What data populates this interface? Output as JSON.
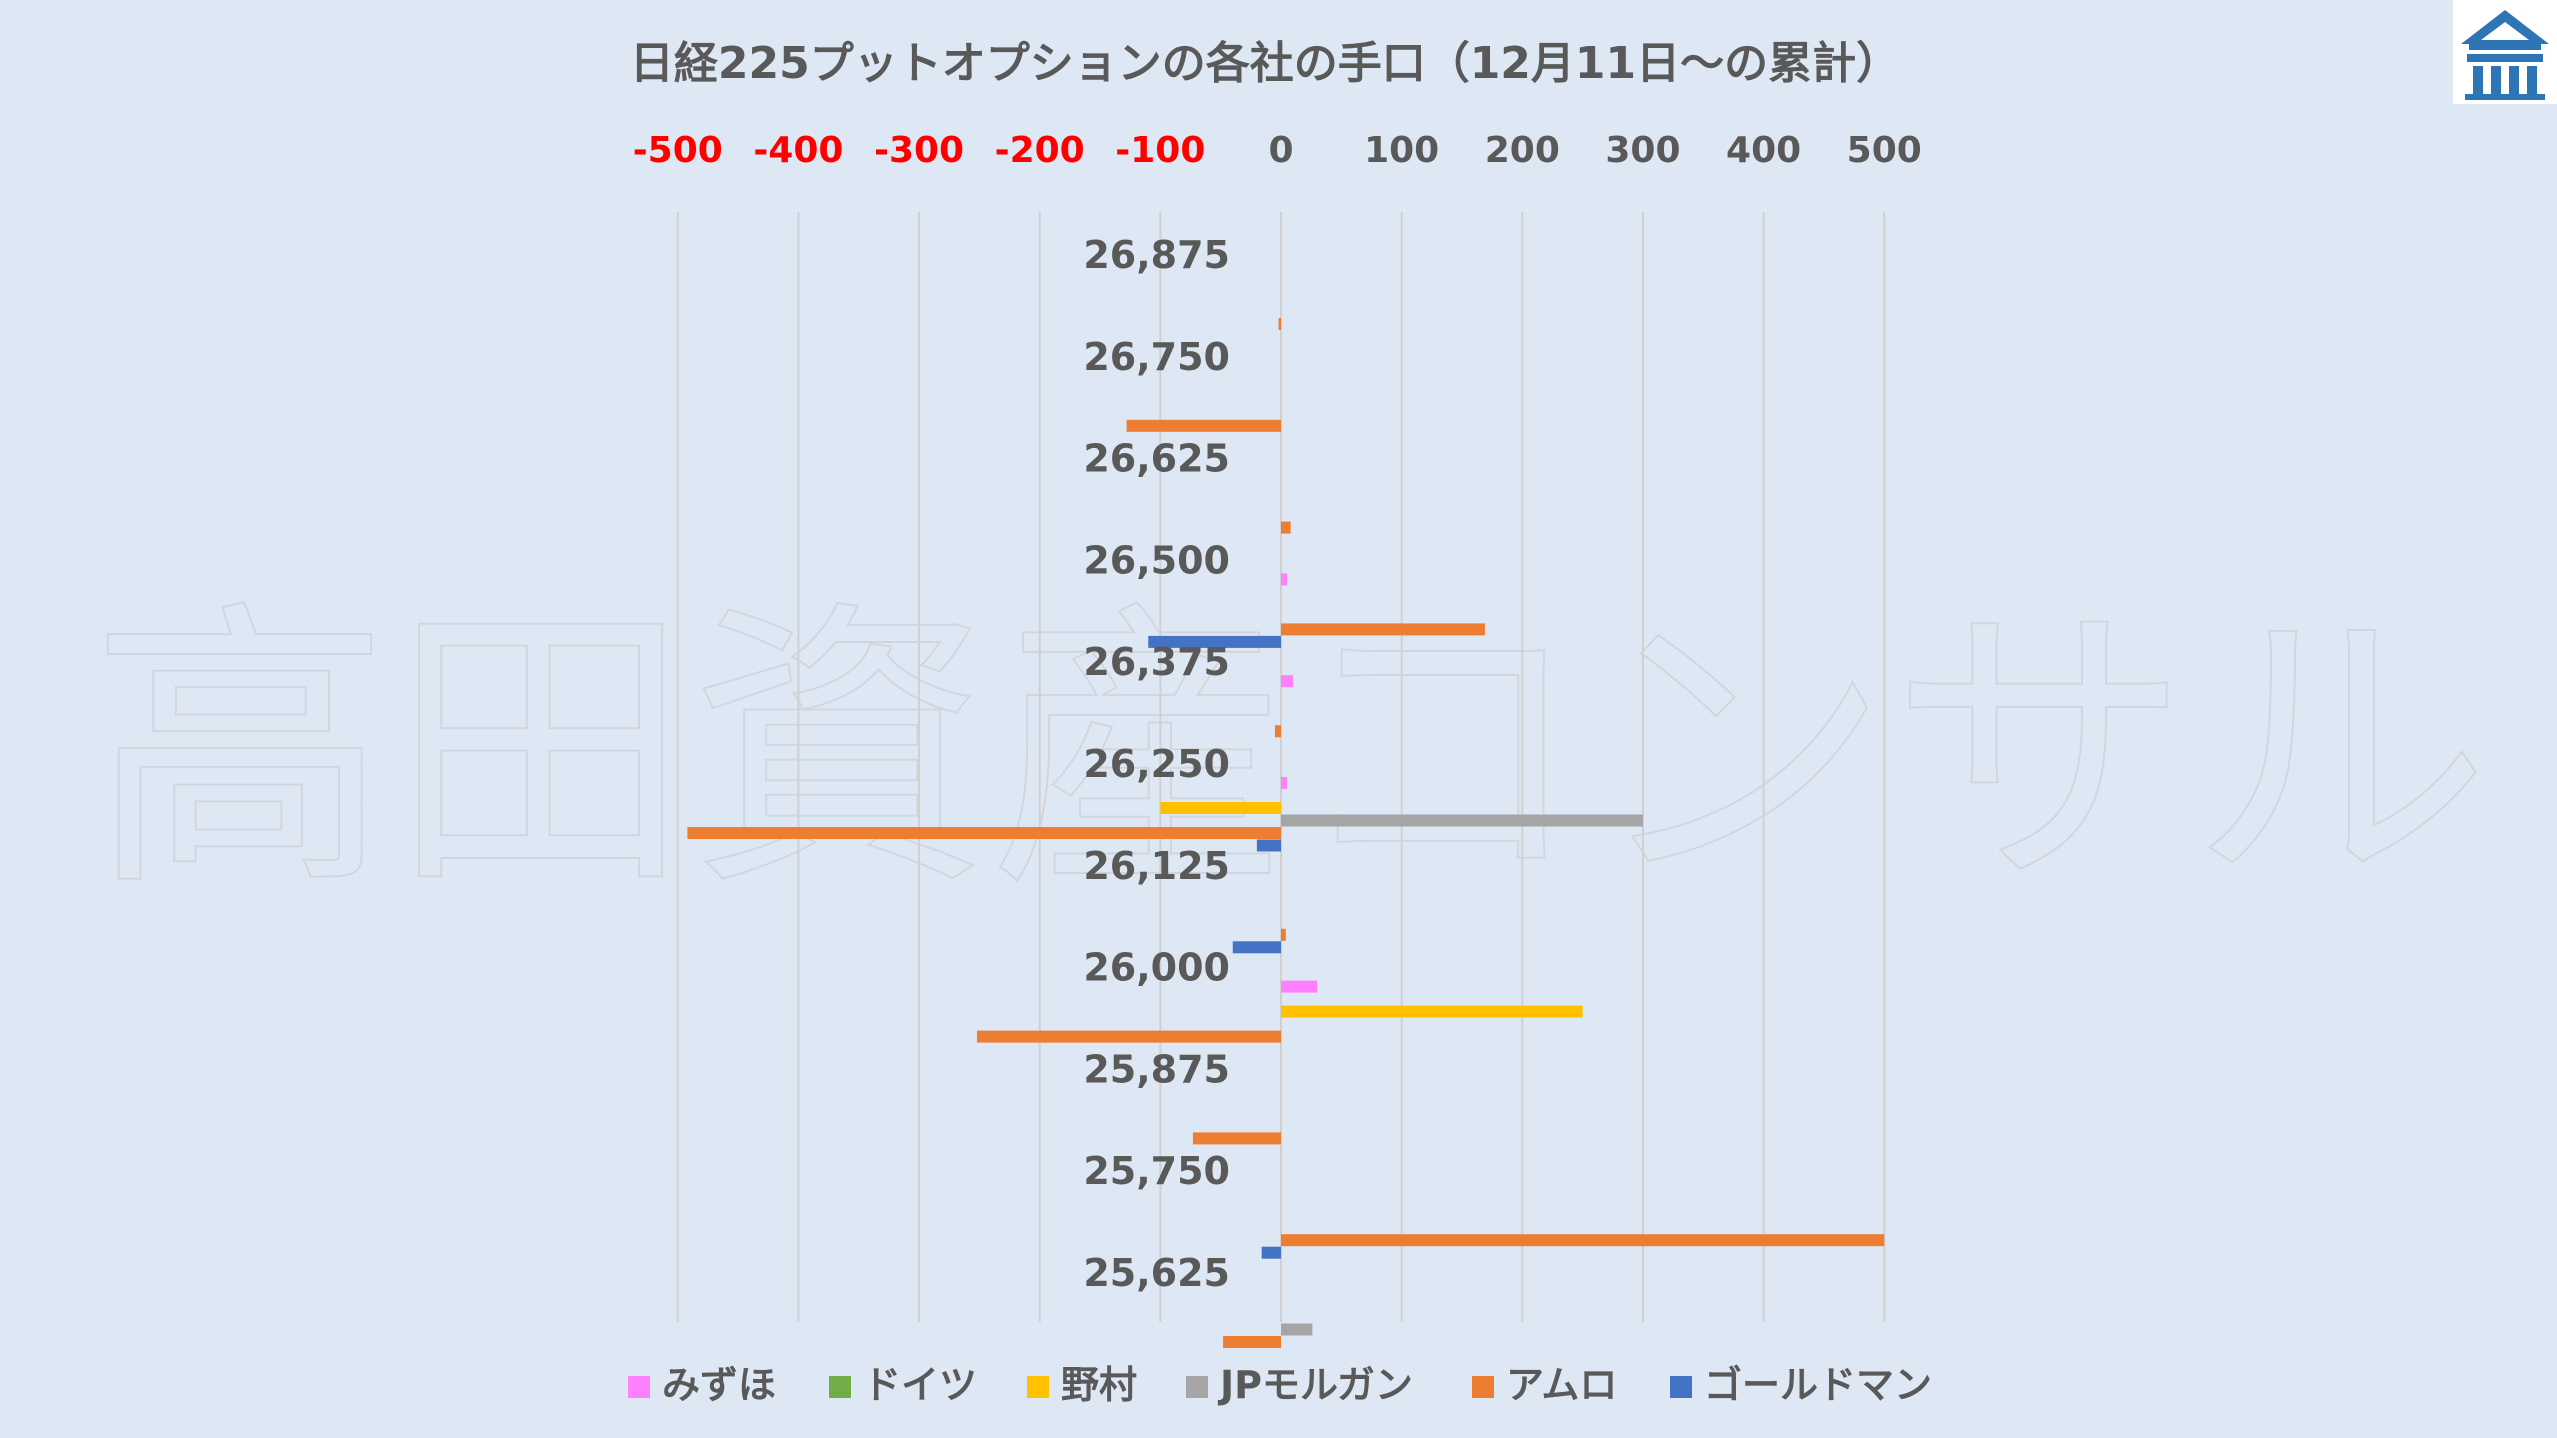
{
  "watermark": "高田資産コンサル",
  "logo_icon": "house-logo-icon",
  "colors": {
    "background": "#dee8f4",
    "gridline": "#d0d0d0",
    "negative_tick": "#ff0000",
    "text": "#595959",
    "logo": "#2e75b6"
  },
  "chart_data": {
    "type": "bar",
    "orientation": "horizontal",
    "title": "日経225プットオプションの各社の手口（12月11日〜の累計）",
    "xlim": [
      -500,
      500
    ],
    "xticks": [
      -500,
      -400,
      -300,
      -200,
      -100,
      0,
      100,
      200,
      300,
      400,
      500
    ],
    "x_axis_position": "top",
    "grid": "vertical",
    "legend_position": "bottom",
    "categories": [
      "26,875",
      "26,750",
      "26,625",
      "26,500",
      "26,375",
      "26,250",
      "26,125",
      "26,000",
      "25,875",
      "25,750",
      "25,625"
    ],
    "series": [
      {
        "name": "みずほ",
        "color": "#ff80ff",
        "values": [
          0,
          0,
          0,
          5,
          10,
          5,
          0,
          30,
          0,
          0,
          0
        ]
      },
      {
        "name": "ドイツ",
        "color": "#70ad47",
        "values": [
          0,
          0,
          0,
          0,
          0,
          0,
          0,
          0,
          0,
          0,
          0
        ]
      },
      {
        "name": "野村",
        "color": "#ffc000",
        "values": [
          0,
          0,
          0,
          0,
          0,
          -100,
          0,
          250,
          0,
          0,
          0
        ]
      },
      {
        "name": "JPモルガン",
        "color": "#a5a5a5",
        "values": [
          0,
          0,
          0,
          0,
          0,
          300,
          0,
          0,
          0,
          0,
          26
        ]
      },
      {
        "name": "アムロ",
        "color": "#ed7d31",
        "values": [
          -2,
          -128,
          8,
          169,
          -5,
          -492,
          4,
          -252,
          -73,
          500,
          -48
        ]
      },
      {
        "name": "ゴールドマン",
        "color": "#4472c4",
        "values": [
          0,
          0,
          0,
          -110,
          0,
          -20,
          -40,
          0,
          0,
          -16,
          0
        ]
      }
    ]
  }
}
